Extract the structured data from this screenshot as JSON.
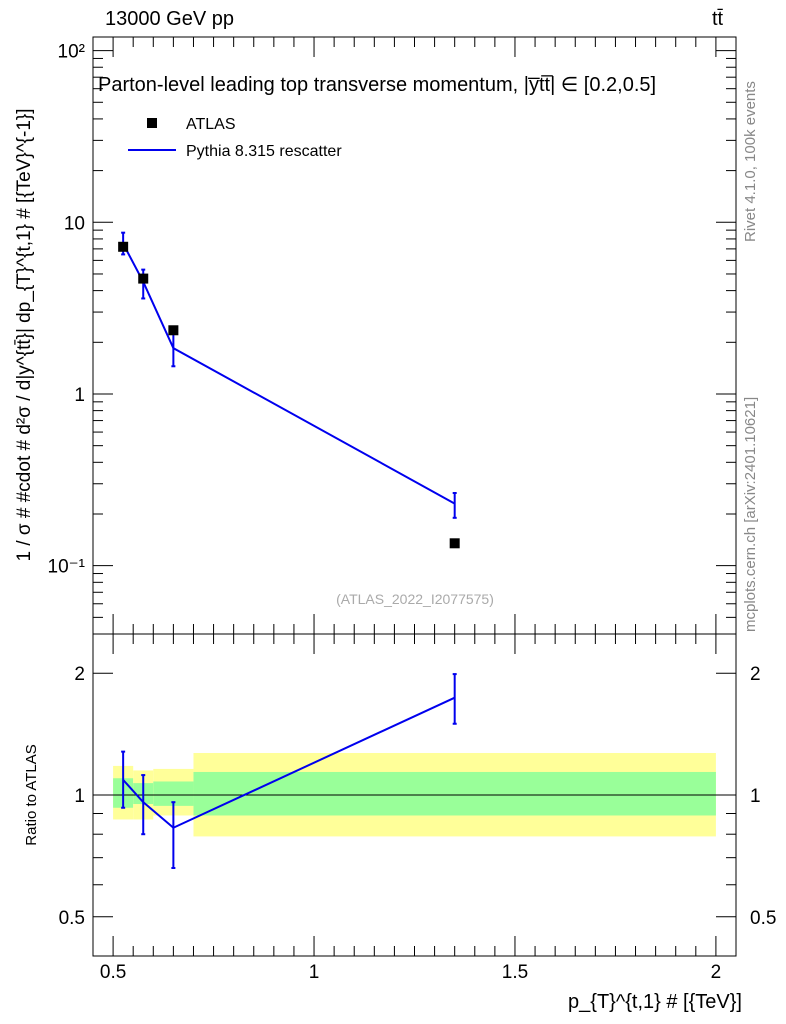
{
  "header": {
    "energy_label": "13000 GeV pp",
    "process_label": "tt̄"
  },
  "side_labels": {
    "rivet": "Rivet 4.1.0,  100k events",
    "source": "mcplots.cern.ch [arXiv:2401.10621]"
  },
  "colors": {
    "mc_line": "#0000ee",
    "data_marker": "#000000",
    "band_inner": "#99ff99",
    "band_outer": "#ffff99"
  },
  "chart_data": [
    {
      "type": "scatter",
      "panel": "main",
      "title": "Parton-level leading top transverse momentum, |y̅tt̅| ∈ [0.2,0.5]",
      "xlabel": "p_{T}^{t,1} # [{TeV}]",
      "ylabel": "1 / σ # #cdot # d²σ / d|y^{tt̄}| dp_{T}^{t,1} # [{TeV}^{-1}]",
      "xlim": [
        0.45,
        2.05
      ],
      "ylim": [
        0.04,
        120
      ],
      "yscale": "log",
      "ytick_labels": [
        "10⁻¹",
        "1",
        "10",
        "10²"
      ],
      "ytick_values": [
        0.1,
        1,
        10,
        100
      ],
      "watermark": "(ATLAS_2022_I2077575)",
      "legend_position": "top-left",
      "series": [
        {
          "name": "ATLAS",
          "style": "markers",
          "x": [
            0.525,
            0.575,
            0.65,
            1.35
          ],
          "y": [
            7.2,
            4.7,
            2.35,
            0.135
          ]
        },
        {
          "name": "Pythia 8.315 rescatter",
          "style": "line",
          "x": [
            0.525,
            0.575,
            0.65,
            1.35
          ],
          "y": [
            7.5,
            4.5,
            1.85,
            0.23
          ],
          "err_low": [
            6.5,
            3.6,
            1.45,
            0.19
          ],
          "err_high": [
            8.7,
            5.3,
            2.25,
            0.265
          ]
        }
      ]
    },
    {
      "type": "line",
      "panel": "ratio",
      "ylabel": "Ratio to ATLAS",
      "xlim": [
        0.45,
        2.05
      ],
      "ylim": [
        0.4,
        2.5
      ],
      "yscale": "log",
      "xtick_labels": [
        "0.5",
        "1",
        "1.5",
        "2"
      ],
      "xtick_values": [
        0.5,
        1.0,
        1.5,
        2.0
      ],
      "ytick_labels": [
        "0.5",
        "1",
        "2"
      ],
      "ytick_values": [
        0.5,
        1,
        2
      ],
      "bands": [
        {
          "x0": 0.5,
          "x1": 0.55,
          "inner": [
            0.93,
            1.1
          ],
          "outer": [
            0.87,
            1.18
          ]
        },
        {
          "x0": 0.55,
          "x1": 0.6,
          "inner": [
            0.95,
            1.07
          ],
          "outer": [
            0.87,
            1.15
          ]
        },
        {
          "x0": 0.6,
          "x1": 0.7,
          "inner": [
            0.94,
            1.08
          ],
          "outer": [
            0.89,
            1.16
          ]
        },
        {
          "x0": 0.7,
          "x1": 2.0,
          "inner": [
            0.89,
            1.14
          ],
          "outer": [
            0.79,
            1.27
          ]
        }
      ],
      "series": [
        {
          "name": "Pythia 8.315 rescatter",
          "x": [
            0.525,
            0.575,
            0.65,
            1.35
          ],
          "y": [
            1.09,
            0.96,
            0.83,
            1.74
          ],
          "err_low": [
            0.93,
            0.8,
            0.66,
            1.5
          ],
          "err_high": [
            1.28,
            1.12,
            0.96,
            1.99
          ]
        }
      ]
    }
  ]
}
